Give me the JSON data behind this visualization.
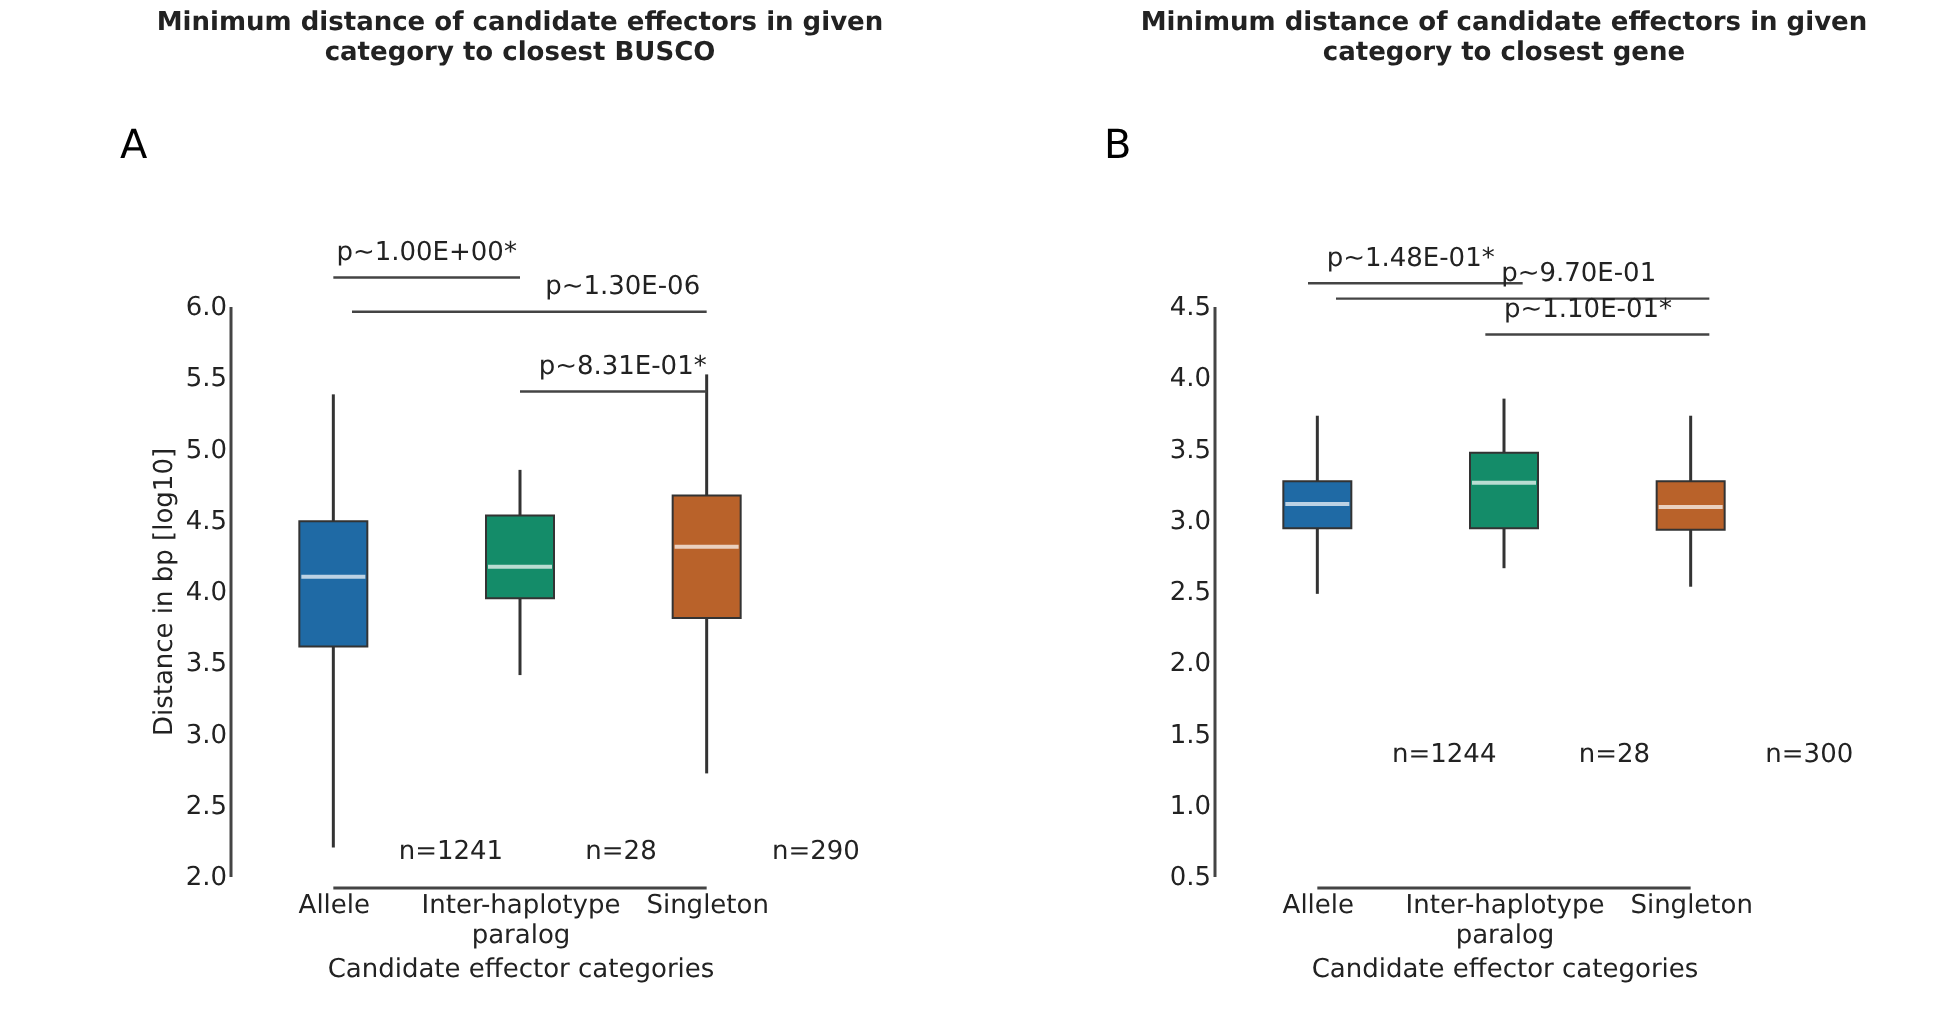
{
  "chart_data": [
    {
      "type": "box",
      "title": "Minimum distance of candidate effectors in given category to closest BUSCO",
      "xlabel": "Candidate effector categories",
      "ylabel": "Distance in bp [log10]",
      "categories": [
        "Allele",
        "Inter-haplotype paralog",
        "Singleton"
      ],
      "colors": [
        "#1f6aa5",
        "#148c69",
        "#b9622a"
      ],
      "boxes": [
        {
          "low": 2.2,
          "q1": 3.61,
          "median": 4.1,
          "q3": 4.49,
          "high": 5.38
        },
        {
          "low": 3.41,
          "q1": 3.95,
          "median": 4.17,
          "q3": 4.53,
          "high": 4.85
        },
        {
          "low": 2.72,
          "q1": 3.81,
          "median": 4.31,
          "q3": 4.67,
          "high": 5.52
        }
      ],
      "ylim": [
        2.0,
        6.0
      ],
      "yticks": [
        {
          "value": 2.0,
          "label": "2.0"
        },
        {
          "value": 2.5,
          "label": "2.5"
        },
        {
          "value": 3.0,
          "label": "3.0"
        },
        {
          "value": 3.5,
          "label": "3.5"
        },
        {
          "value": 4.0,
          "label": "4.0"
        },
        {
          "value": 4.5,
          "label": "4.5"
        },
        {
          "value": 5.0,
          "label": "5.0"
        },
        {
          "value": 5.5,
          "label": "5.5"
        },
        {
          "value": 6.0,
          "label": "6.0"
        }
      ],
      "grid": false,
      "legend": false,
      "annotations": [
        "A",
        "p~1.00E+00*",
        "p~1.30E-06",
        "p~8.31E-01*",
        "n=1241",
        "n=28",
        "n=290"
      ]
    },
    {
      "type": "box",
      "title": "Minimum distance of candidate effectors in given category to closest gene",
      "xlabel": "Candidate effector categories",
      "categories": [
        "Allele",
        "Inter-haplotype paralog",
        "Singleton"
      ],
      "colors": [
        "#1f6aa5",
        "#148c69",
        "#b9622a"
      ],
      "boxes": [
        {
          "low": 2.48,
          "q1": 2.94,
          "median": 3.11,
          "q3": 3.27,
          "high": 3.73
        },
        {
          "low": 2.66,
          "q1": 2.94,
          "median": 3.26,
          "q3": 3.47,
          "high": 3.85
        },
        {
          "low": 2.53,
          "q1": 2.93,
          "median": 3.09,
          "q3": 3.27,
          "high": 3.73
        }
      ],
      "ylim": [
        0.5,
        4.5
      ],
      "yticks": [
        {
          "value": 0.5,
          "label": "0.5"
        },
        {
          "value": 1.0,
          "label": "1.0"
        },
        {
          "value": 1.5,
          "label": "1.5"
        },
        {
          "value": 2.0,
          "label": "2.0"
        },
        {
          "value": 2.5,
          "label": "2.5"
        },
        {
          "value": 3.0,
          "label": "3.0"
        },
        {
          "value": 3.5,
          "label": "3.5"
        },
        {
          "value": 4.0,
          "label": "4.0"
        },
        {
          "value": 4.5,
          "label": "4.5"
        }
      ],
      "grid": false,
      "legend": false,
      "annotations": [
        "B",
        "p~1.48E-01*",
        "p~9.70E-01",
        "p~1.10E-01*",
        "n=1244",
        "n=28",
        "n=300"
      ]
    }
  ]
}
